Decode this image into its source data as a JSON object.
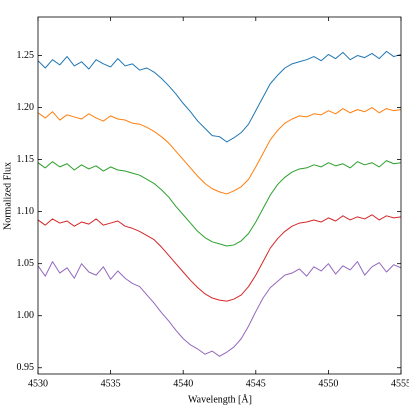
{
  "chart_data": {
    "type": "line",
    "xlabel": "Wavelength [Å]",
    "ylabel": "Normalized Flux",
    "x": [
      4530,
      4530.5,
      4531,
      4531.5,
      4532,
      4532.5,
      4533,
      4533.5,
      4534,
      4534.5,
      4535,
      4535.5,
      4536,
      4536.5,
      4537,
      4537.5,
      4538,
      4538.5,
      4539,
      4539.5,
      4540,
      4540.5,
      4541,
      4541.5,
      4542,
      4542.5,
      4543,
      4543.5,
      4544,
      4544.5,
      4545,
      4545.5,
      4546,
      4546.5,
      4547,
      4547.5,
      4548,
      4548.5,
      4549,
      4549.5,
      4550,
      4550.5,
      4551,
      4551.5,
      4552,
      4552.5,
      4553,
      4553.5,
      4554,
      4554.5,
      4555
    ],
    "series": [
      {
        "color": "#1f77b4",
        "values": [
          1.245,
          1.238,
          1.246,
          1.241,
          1.249,
          1.24,
          1.244,
          1.237,
          1.246,
          1.242,
          1.239,
          1.247,
          1.24,
          1.242,
          1.236,
          1.238,
          1.234,
          1.228,
          1.221,
          1.213,
          1.204,
          1.196,
          1.187,
          1.18,
          1.173,
          1.172,
          1.167,
          1.171,
          1.176,
          1.184,
          1.197,
          1.21,
          1.223,
          1.231,
          1.238,
          1.242,
          1.244,
          1.246,
          1.249,
          1.245,
          1.251,
          1.247,
          1.253,
          1.246,
          1.25,
          1.248,
          1.252,
          1.247,
          1.254,
          1.249,
          1.251
        ]
      },
      {
        "color": "#ff7f0e",
        "values": [
          1.195,
          1.19,
          1.196,
          1.188,
          1.193,
          1.191,
          1.189,
          1.194,
          1.19,
          1.187,
          1.192,
          1.189,
          1.188,
          1.185,
          1.184,
          1.181,
          1.177,
          1.172,
          1.166,
          1.158,
          1.15,
          1.142,
          1.134,
          1.127,
          1.122,
          1.119,
          1.117,
          1.12,
          1.124,
          1.131,
          1.143,
          1.156,
          1.169,
          1.178,
          1.185,
          1.189,
          1.192,
          1.191,
          1.194,
          1.193,
          1.197,
          1.194,
          1.199,
          1.195,
          1.198,
          1.196,
          1.2,
          1.195,
          1.199,
          1.197,
          1.198
        ]
      },
      {
        "color": "#2ca02c",
        "values": [
          1.147,
          1.142,
          1.148,
          1.143,
          1.146,
          1.14,
          1.145,
          1.141,
          1.144,
          1.139,
          1.143,
          1.14,
          1.139,
          1.137,
          1.135,
          1.131,
          1.127,
          1.121,
          1.114,
          1.105,
          1.097,
          1.089,
          1.081,
          1.075,
          1.071,
          1.069,
          1.067,
          1.068,
          1.072,
          1.079,
          1.09,
          1.103,
          1.116,
          1.126,
          1.133,
          1.138,
          1.141,
          1.142,
          1.145,
          1.143,
          1.147,
          1.144,
          1.146,
          1.142,
          1.148,
          1.145,
          1.147,
          1.143,
          1.149,
          1.146,
          1.147
        ]
      },
      {
        "color": "#d62728",
        "values": [
          1.092,
          1.087,
          1.093,
          1.089,
          1.091,
          1.086,
          1.09,
          1.088,
          1.093,
          1.087,
          1.089,
          1.091,
          1.086,
          1.084,
          1.081,
          1.077,
          1.073,
          1.066,
          1.058,
          1.05,
          1.042,
          1.034,
          1.027,
          1.021,
          1.017,
          1.015,
          1.014,
          1.016,
          1.02,
          1.028,
          1.039,
          1.052,
          1.065,
          1.074,
          1.081,
          1.086,
          1.089,
          1.09,
          1.092,
          1.09,
          1.094,
          1.091,
          1.096,
          1.092,
          1.095,
          1.093,
          1.097,
          1.092,
          1.096,
          1.094,
          1.095
        ]
      },
      {
        "color": "#9467bd",
        "values": [
          1.048,
          1.038,
          1.052,
          1.041,
          1.046,
          1.036,
          1.05,
          1.042,
          1.039,
          1.047,
          1.035,
          1.043,
          1.036,
          1.031,
          1.028,
          1.02,
          1.012,
          1.003,
          0.995,
          0.986,
          0.978,
          0.972,
          0.968,
          0.963,
          0.966,
          0.961,
          0.965,
          0.97,
          0.978,
          0.99,
          1.004,
          1.017,
          1.027,
          1.033,
          1.039,
          1.041,
          1.045,
          1.038,
          1.047,
          1.043,
          1.05,
          1.04,
          1.048,
          1.044,
          1.052,
          1.039,
          1.047,
          1.051,
          1.042,
          1.049,
          1.046
        ]
      }
    ],
    "xlim": [
      4530,
      4555
    ],
    "xticks": [
      4530,
      4535,
      4540,
      4545,
      4550,
      4555
    ],
    "ylim": [
      0.944,
      1.287
    ],
    "yticks": [
      0.95,
      {
        "value": 1,
        "label": "1.00"
      },
      1.05,
      {
        "value": 1.1,
        "label": "1.10"
      },
      1.15,
      {
        "value": 1.2,
        "label": "1.20"
      },
      1.25
    ]
  }
}
